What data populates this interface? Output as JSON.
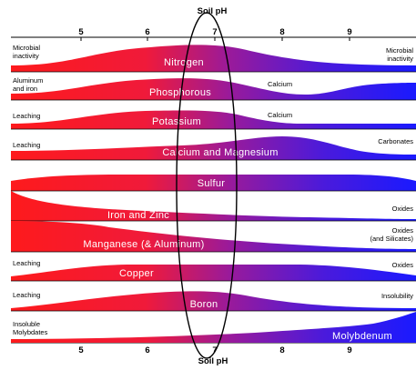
{
  "axis": {
    "top_title": "Soil pH",
    "bottom_title": "Soil pH",
    "ticks": [
      "5",
      "6",
      "7",
      "8",
      "9"
    ]
  },
  "rows": [
    {
      "nutrient": "Nitrogen",
      "left_label": [
        "Microbial",
        "inactivity"
      ],
      "right_label": [
        "Microbial",
        "inactivity"
      ],
      "mid_label": ""
    },
    {
      "nutrient": "Phosphorous",
      "left_label": [
        "Aluminum",
        "and iron"
      ],
      "right_label": [],
      "mid_label": "Calcium"
    },
    {
      "nutrient": "Potassium",
      "left_label": [
        "Leaching"
      ],
      "right_label": [],
      "mid_label": "Calcium"
    },
    {
      "nutrient": "Calcium and Magnesium",
      "left_label": [
        "Leaching"
      ],
      "right_label": [
        "Carbonates"
      ],
      "mid_label": ""
    },
    {
      "nutrient": "Sulfur",
      "left_label": [],
      "right_label": [],
      "mid_label": ""
    },
    {
      "nutrient": "Iron and Zinc",
      "left_label": [],
      "right_label": [
        "Oxides"
      ],
      "mid_label": ""
    },
    {
      "nutrient": "Manganese (& Aluminum)",
      "left_label": [],
      "right_label": [
        "Oxides",
        "(and Silicates)"
      ],
      "mid_label": ""
    },
    {
      "nutrient": "Copper",
      "left_label": [
        "Leaching"
      ],
      "right_label": [
        "Oxides"
      ],
      "mid_label": ""
    },
    {
      "nutrient": "Boron",
      "left_label": [
        "Leaching"
      ],
      "right_label": [
        "Insolubility"
      ],
      "mid_label": ""
    },
    {
      "nutrient": "Molybdenum",
      "left_label": [
        "Insoluble",
        "Molybdates"
      ],
      "right_label": [],
      "mid_label": ""
    }
  ],
  "colors": {
    "acid_red": "#ff1a1a",
    "mid_purple": "#9a1a9a",
    "alkaline_blue": "#1a1aff",
    "label_text": "#ffffff"
  }
}
